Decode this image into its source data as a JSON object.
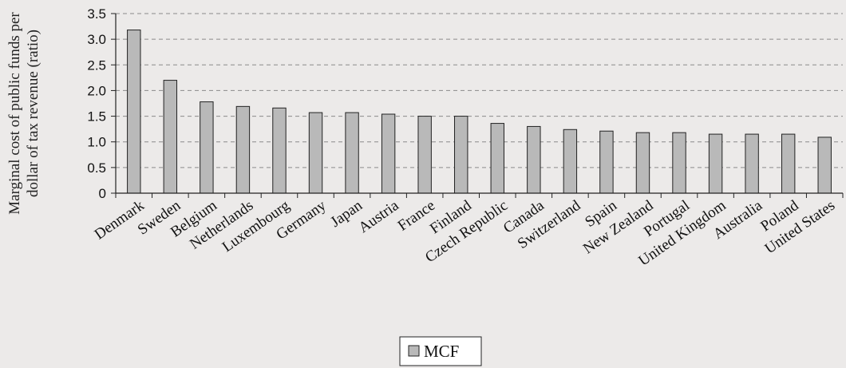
{
  "chart_data": {
    "type": "bar",
    "title": "",
    "ylabel_lines": [
      "Marginal cost of public funds per",
      "dollar of tax revenue  (ratio)"
    ],
    "xlabel": "",
    "ylim": [
      0,
      3.5
    ],
    "yticks": [
      "0",
      "0.5",
      "1.0",
      "1.5",
      "2.0",
      "2.5",
      "3.0",
      "3.5"
    ],
    "grid": true,
    "grid_style": "dashed",
    "legend_position": "bottom-center",
    "categories": [
      "Denmark",
      "Sweden",
      "Belgium",
      "Netherlands",
      "Luxembourg",
      "Germany",
      "Japan",
      "Austria",
      "France",
      "Finland",
      "Czech Republic",
      "Canada",
      "Switzerland",
      "Spain",
      "New Zealand",
      "Portugal",
      "United Kingdom",
      "Australia",
      "Poland",
      "United States"
    ],
    "series": [
      {
        "name": "MCF",
        "values": [
          3.18,
          2.2,
          1.78,
          1.69,
          1.66,
          1.57,
          1.57,
          1.54,
          1.5,
          1.5,
          1.36,
          1.3,
          1.24,
          1.21,
          1.18,
          1.18,
          1.15,
          1.15,
          1.15,
          1.09
        ]
      }
    ],
    "colors": {
      "background": "#eceae9",
      "bar_fill": "#b9b9b9",
      "bar_stroke": "#222222",
      "grid": "#8a8a8a",
      "axis": "#222222"
    }
  }
}
